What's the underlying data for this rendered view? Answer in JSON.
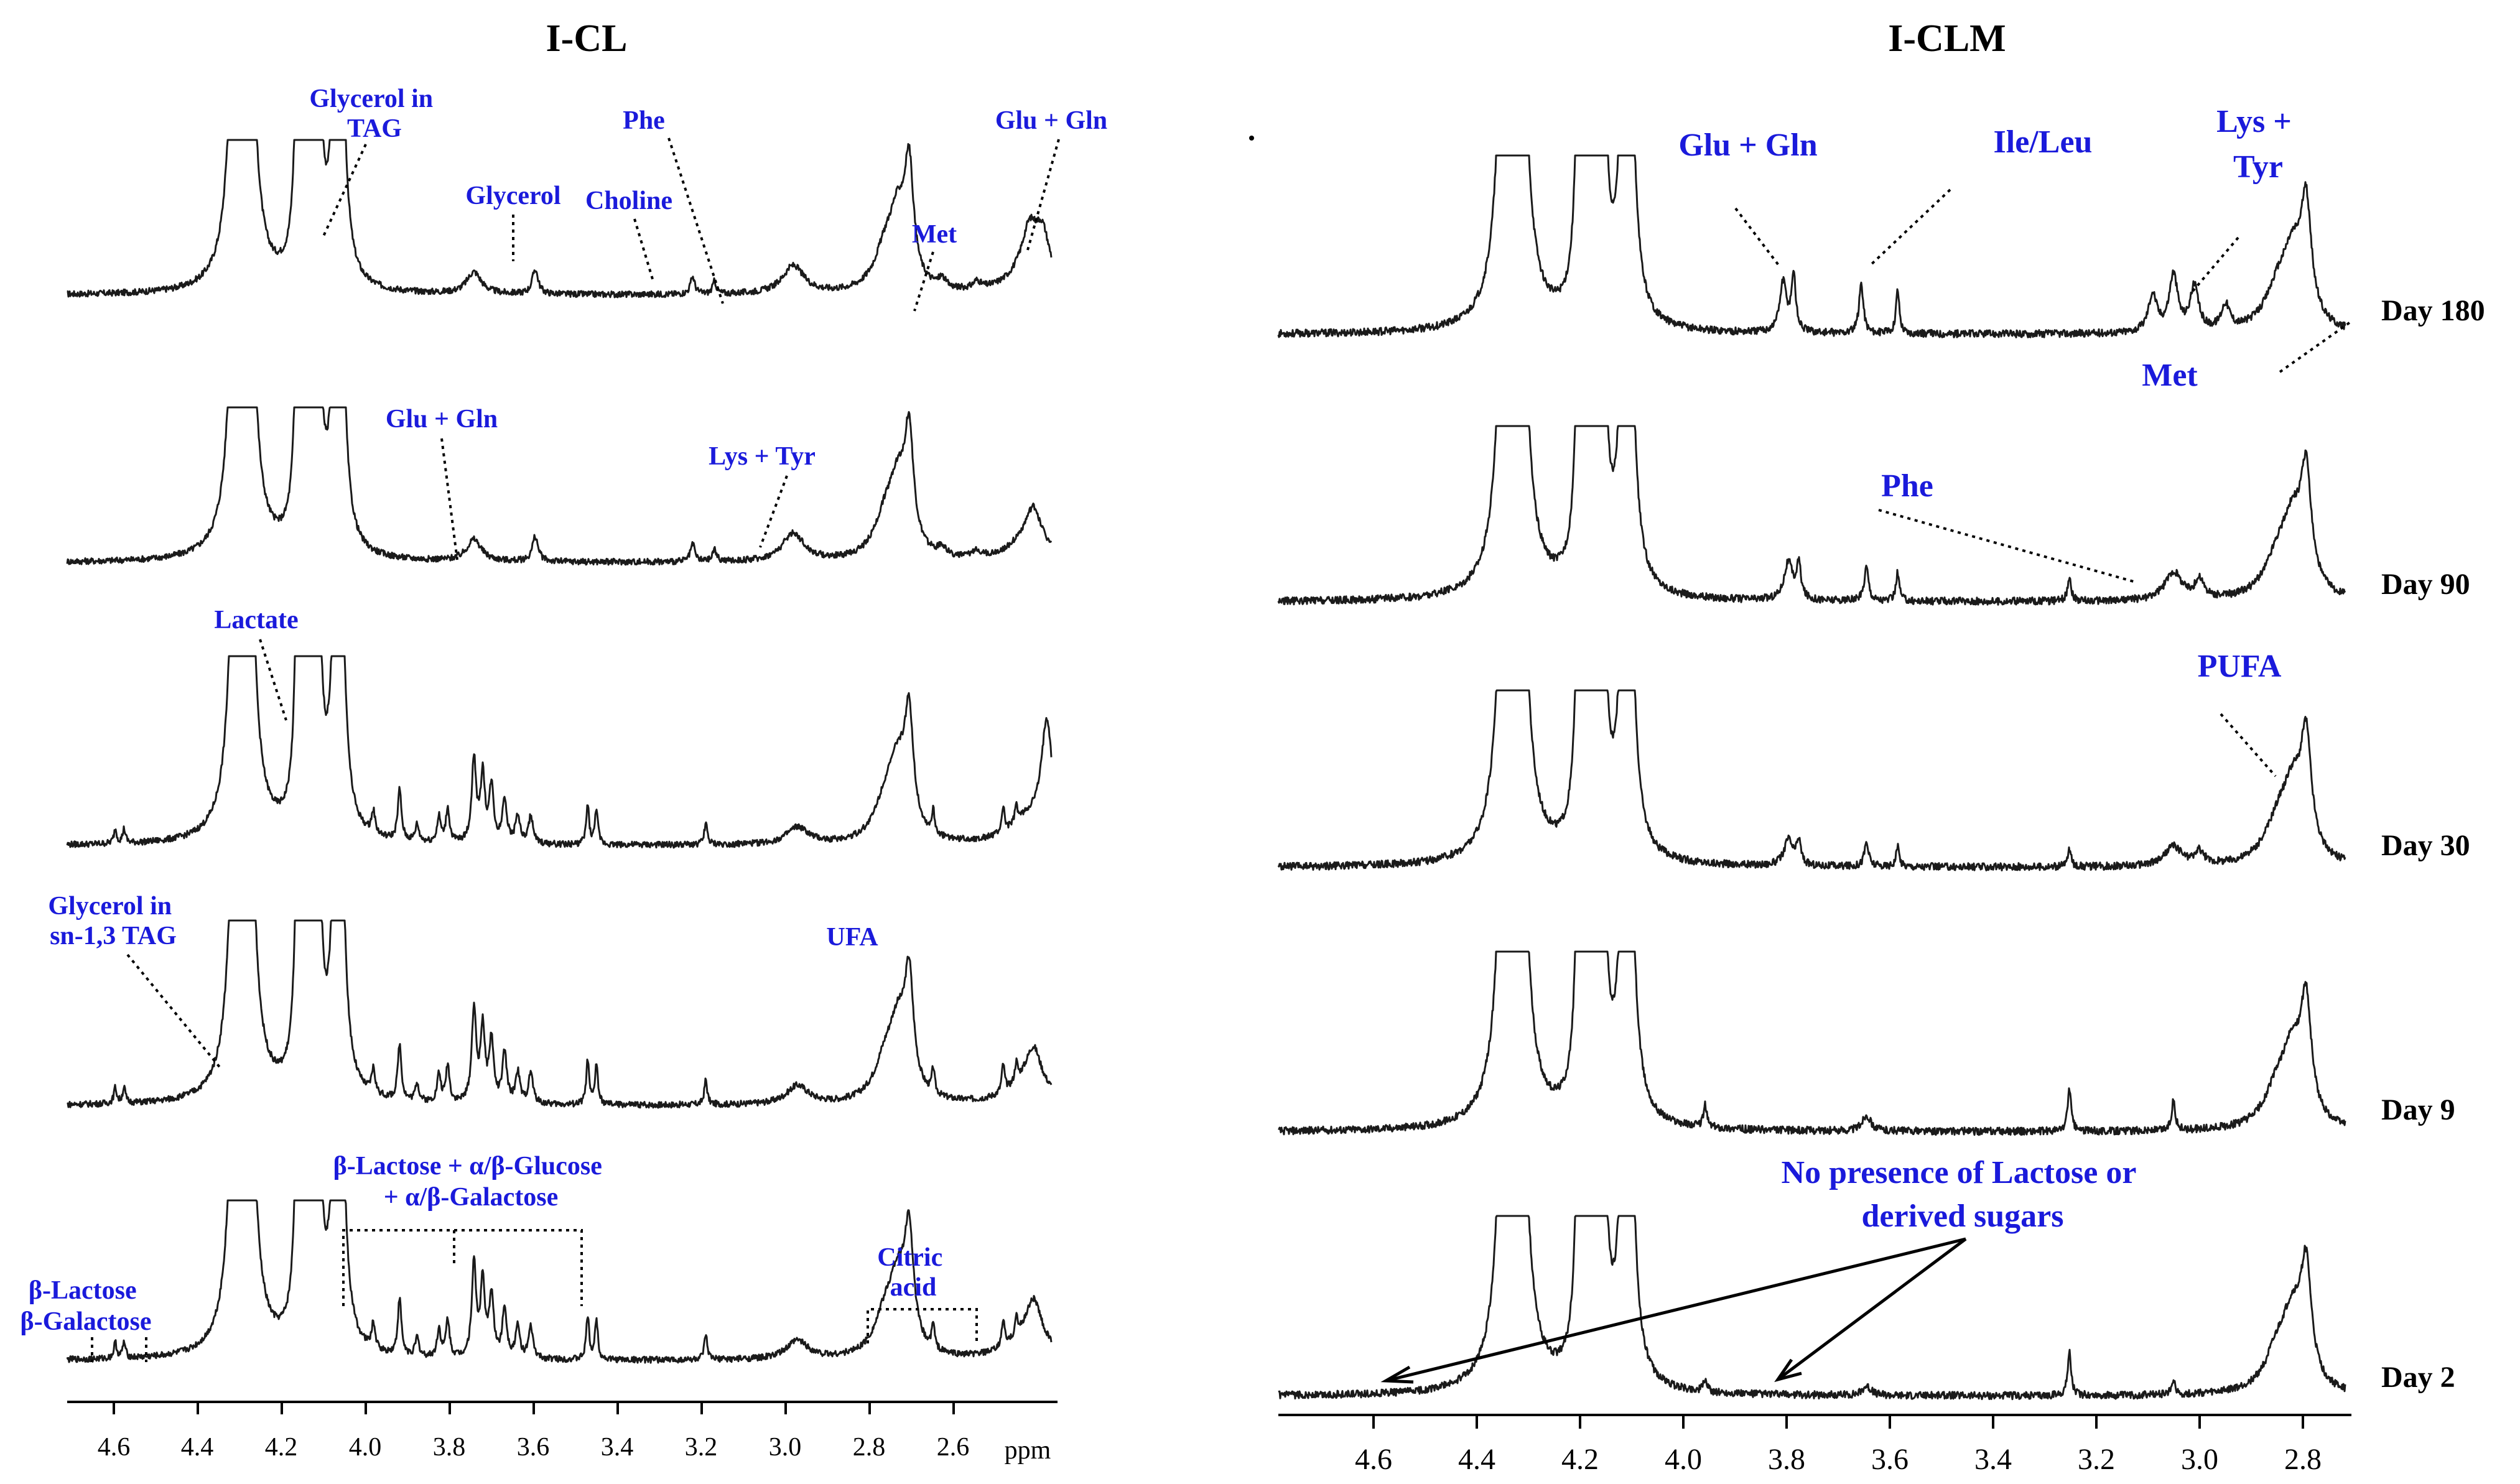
{
  "chart_data": [
    {
      "type": "line",
      "title": "I-CL",
      "xlabel": "ppm",
      "xlim": [
        4.7,
        2.45
      ],
      "ticks": [
        "4.6",
        "4.4",
        "4.2",
        "4.0",
        "3.8",
        "3.6",
        "3.4",
        "3.2",
        "3.0",
        "2.8",
        "2.6"
      ],
      "unit": "ppm",
      "series_note": "Stacked 1H NMR spectra (five traces, top to bottom); intensities in arbitrary units",
      "annotations": [
        {
          "text": [
            "Glycerol in",
            "TAG"
          ],
          "ppm": 4.07
        },
        {
          "text": [
            "Glycerol"
          ],
          "ppm": 3.64
        },
        {
          "text": [
            "Choline"
          ],
          "ppm": 3.27
        },
        {
          "text": [
            "Phe"
          ],
          "ppm": 3.12
        },
        {
          "text": [
            "Met"
          ],
          "ppm": 2.64
        },
        {
          "text": [
            "Glu + Gln"
          ],
          "ppm": 2.47
        },
        {
          "text": [
            "Glu + Gln"
          ],
          "ppm": 3.75
        },
        {
          "text": [
            "Lys + Tyr"
          ],
          "ppm": 3.03
        },
        {
          "text": [
            "Lactate"
          ],
          "ppm": 4.12
        },
        {
          "text": [
            "Glycerol in",
            "sn-1,3 TAG"
          ],
          "ppm": 4.31
        },
        {
          "text": [
            "UFA"
          ],
          "ppm": 2.78
        },
        {
          "text": [
            "β-Lactose + α/β-Glucose",
            "+ α/β-Galactose"
          ],
          "ppm": 3.75
        },
        {
          "text": [
            "β-Lactose",
            "β-Galactose"
          ],
          "ppm": 4.6
        },
        {
          "text": [
            "Citric",
            "acid"
          ],
          "ppm": 2.62
        }
      ]
    },
    {
      "type": "line",
      "title": "I-CLM",
      "xlabel": "",
      "xlim": [
        4.75,
        2.7
      ],
      "ticks": [
        "4.6",
        "4.4",
        "4.2",
        "4.0",
        "3.8",
        "3.6",
        "3.4",
        "3.2",
        "3.0",
        "2.8"
      ],
      "series_note": "Stacked 1H NMR spectra at five ripening times; intensities in arbitrary units",
      "series": [
        {
          "name": "Day 180"
        },
        {
          "name": "Day 90"
        },
        {
          "name": "Day 30"
        },
        {
          "name": "Day 9"
        },
        {
          "name": "Day 2"
        }
      ],
      "annotations": [
        {
          "text": [
            "Glu + Gln"
          ],
          "ppm": 3.77
        },
        {
          "text": [
            "Ile/Leu"
          ],
          "ppm": 3.6
        },
        {
          "text": [
            "Lys +",
            "Tyr"
          ],
          "ppm": 2.98
        },
        {
          "text": [
            "Met"
          ],
          "ppm": 2.72
        },
        {
          "text": [
            "Phe"
          ],
          "ppm": 3.08
        },
        {
          "text": [
            "PUFA"
          ],
          "ppm": 2.82
        },
        {
          "text": [
            "No presence of Lactose or",
            "derived sugars"
          ],
          "ppm": 3.78
        }
      ]
    }
  ]
}
